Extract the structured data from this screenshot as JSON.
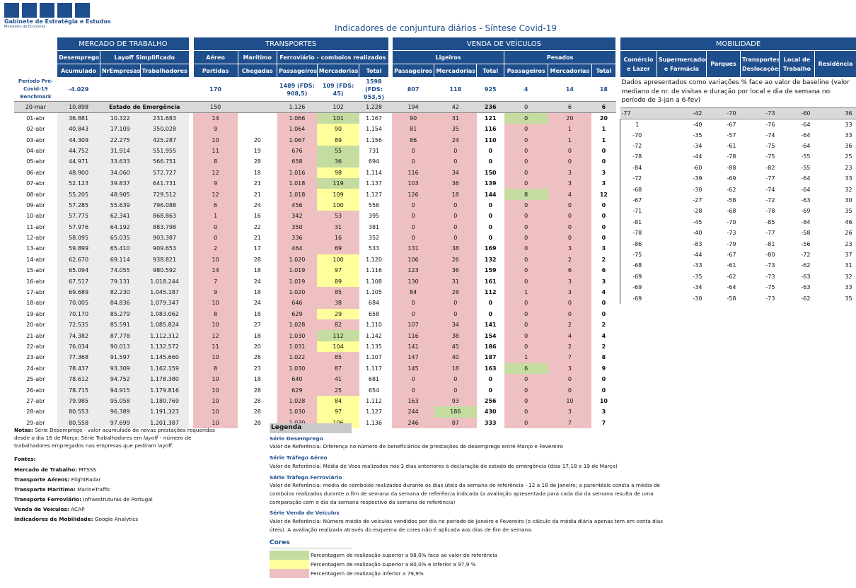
{
  "logo": {
    "name": "Gabinete de Estratégia e Estudos",
    "sub": "Ministério da Economia"
  },
  "title": "Indicadores de conjuntura diários - Síntese Covid-19",
  "sections": {
    "mercado": "MERCADO DE TRABALHO",
    "transportes": "TRANSPORTES",
    "venda": "VENDA DE VEÍCULOS",
    "mobilidade": "MOBILIDADE"
  },
  "headers": {
    "desemprego": "Desemprego",
    "layoff": "Layoff Simplificado",
    "aereo": "Aéreo",
    "maritimo": "Marítimo",
    "ferroviario": "Ferroviário - comboios realizados",
    "ligeiros": "Ligeiros",
    "pesados": "Pesados",
    "acumulado": "Acumulado",
    "nrempresas": "NrEmpresas",
    "trabalhadores": "Trabalhadores",
    "partidas": "Partidas",
    "chegadas": "Chegadas",
    "passageiros": "Passageiros",
    "mercadorias": "Mercadorias",
    "total": "Total"
  },
  "benchmark": {
    "label": "Período Pré-Covid-19 Benchmark",
    "desemprego": "-4.029",
    "aereo": "170",
    "ferro_pass": "1489 (FDS: 908,5)",
    "ferro_merc": "109 (FDS: 45)",
    "ferro_total": "1598 (FDS: 953,5)",
    "lig_pass": "807",
    "lig_merc": "118",
    "lig_total": "925",
    "pes_pass": "4",
    "pes_merc": "14",
    "pes_total": "18"
  },
  "reference_row": [
    "20-mar",
    "10.898",
    "Estado de Emergência",
    "",
    "150",
    "",
    "1.126",
    "102",
    "1.228",
    "194",
    "42",
    "236",
    "0",
    "6",
    "6"
  ],
  "rows": [
    [
      "01-abr",
      "36.881",
      "10.322",
      "231.683",
      "14",
      "",
      "1.066",
      "101",
      "1.167",
      "90",
      "31",
      "121",
      "0",
      "20",
      "20"
    ],
    [
      "02-abr",
      "40.843",
      "17.109",
      "350.028",
      "9",
      "",
      "1.064",
      "90",
      "1.154",
      "81",
      "35",
      "116",
      "0",
      "1",
      "1"
    ],
    [
      "03-abr",
      "44.309",
      "22.275",
      "425.287",
      "10",
      "20",
      "1.067",
      "89",
      "1.156",
      "86",
      "24",
      "110",
      "0",
      "1",
      "1"
    ],
    [
      "04-abr",
      "44.752",
      "31.914",
      "551.955",
      "11",
      "19",
      "676",
      "55",
      "731",
      "0",
      "0",
      "0",
      "0",
      "0",
      "0"
    ],
    [
      "05-abr",
      "44.971",
      "33.633",
      "566.751",
      "8",
      "28",
      "658",
      "36",
      "694",
      "0",
      "0",
      "0",
      "0",
      "0",
      "0"
    ],
    [
      "06-abr",
      "48.900",
      "34.060",
      "572.727",
      "12",
      "18",
      "1.016",
      "98",
      "1.114",
      "116",
      "34",
      "150",
      "0",
      "3",
      "3"
    ],
    [
      "07-abr",
      "52.123",
      "39.837",
      "641.731",
      "9",
      "21",
      "1.018",
      "119",
      "1.137",
      "103",
      "36",
      "139",
      "0",
      "3",
      "3"
    ],
    [
      "08-abr",
      "55.205",
      "48.905",
      "729.512",
      "12",
      "21",
      "1.018",
      "109",
      "1.127",
      "126",
      "18",
      "144",
      "8",
      "4",
      "12"
    ],
    [
      "09-abr",
      "57.285",
      "55.639",
      "796.088",
      "6",
      "24",
      "456",
      "100",
      "556",
      "0",
      "0",
      "0",
      "0",
      "0",
      "0"
    ],
    [
      "10-abr",
      "57.775",
      "62.341",
      "868.863",
      "1",
      "16",
      "342",
      "53",
      "395",
      "0",
      "0",
      "0",
      "0",
      "0",
      "0"
    ],
    [
      "11-abr",
      "57.976",
      "64.192",
      "883.798",
      "0",
      "22",
      "350",
      "31",
      "381",
      "0",
      "0",
      "0",
      "0",
      "0",
      "0"
    ],
    [
      "12-abr",
      "58.095",
      "65.035",
      "903.387",
      "0",
      "21",
      "336",
      "16",
      "352",
      "0",
      "0",
      "0",
      "0",
      "0",
      "0"
    ],
    [
      "13-abr",
      "59.899",
      "65.410",
      "909.653",
      "2",
      "17",
      "464",
      "69",
      "533",
      "131",
      "38",
      "169",
      "0",
      "3",
      "3"
    ],
    [
      "14-abr",
      "62.670",
      "69.114",
      "938.821",
      "10",
      "28",
      "1.020",
      "100",
      "1.120",
      "106",
      "26",
      "132",
      "0",
      "2",
      "2"
    ],
    [
      "15-abr",
      "65.094",
      "74.055",
      "980.592",
      "14",
      "18",
      "1.019",
      "97",
      "1.116",
      "123",
      "36",
      "159",
      "0",
      "6",
      "6"
    ],
    [
      "16-abr",
      "67.517",
      "79.131",
      "1.018.244",
      "7",
      "24",
      "1.019",
      "89",
      "1.108",
      "130",
      "31",
      "161",
      "0",
      "3",
      "3"
    ],
    [
      "17-abr",
      "69.689",
      "82.230",
      "1.045.187",
      "9",
      "18",
      "1.020",
      "85",
      "1.105",
      "84",
      "28",
      "112",
      "1",
      "3",
      "4"
    ],
    [
      "18-abr",
      "70.005",
      "84.836",
      "1.079.347",
      "10",
      "24",
      "646",
      "38",
      "684",
      "0",
      "0",
      "0",
      "0",
      "0",
      "0"
    ],
    [
      "19-abr",
      "70.170",
      "85.279",
      "1.083.062",
      "8",
      "18",
      "629",
      "29",
      "658",
      "0",
      "0",
      "0",
      "0",
      "0",
      "0"
    ],
    [
      "20-abr",
      "72.535",
      "85.591",
      "1.085.824",
      "10",
      "27",
      "1.028",
      "82",
      "1.110",
      "107",
      "34",
      "141",
      "0",
      "2",
      "2"
    ],
    [
      "21-abr",
      "74.382",
      "87.778",
      "1.112.312",
      "12",
      "18",
      "1.030",
      "112",
      "1.142",
      "116",
      "38",
      "154",
      "0",
      "4",
      "4"
    ],
    [
      "22-abr",
      "76.034",
      "90.013",
      "1.132.572",
      "11",
      "20",
      "1.031",
      "104",
      "1.135",
      "141",
      "45",
      "186",
      "0",
      "2",
      "2"
    ],
    [
      "23-abr",
      "77.368",
      "91.597",
      "1.145.660",
      "10",
      "28",
      "1.022",
      "85",
      "1.107",
      "147",
      "40",
      "187",
      "1",
      "7",
      "8"
    ],
    [
      "24-abr",
      "78.437",
      "93.309",
      "1.162.159",
      "8",
      "23",
      "1.030",
      "87",
      "1.117",
      "145",
      "18",
      "163",
      "6",
      "3",
      "9"
    ],
    [
      "25-abr",
      "78.612",
      "94.752",
      "1.178.380",
      "10",
      "18",
      "640",
      "41",
      "681",
      "0",
      "0",
      "0",
      "0",
      "0",
      "0"
    ],
    [
      "26-abr",
      "78.715",
      "94.915",
      "1.179.816",
      "10",
      "28",
      "629",
      "25",
      "654",
      "0",
      "0",
      "0",
      "0",
      "0",
      "0"
    ],
    [
      "27-abr",
      "79.985",
      "95.058",
      "1.180.769",
      "10",
      "28",
      "1.028",
      "84",
      "1.112",
      "163",
      "93",
      "256",
      "0",
      "10",
      "10"
    ],
    [
      "28-abr",
      "80.553",
      "96.389",
      "1.191.323",
      "10",
      "28",
      "1.030",
      "97",
      "1.127",
      "244",
      "186",
      "430",
      "0",
      "3",
      "3"
    ],
    [
      "29-abr",
      "80.558",
      "97.699",
      "1.201.387",
      "10",
      "28",
      "1.030",
      "106",
      "1.136",
      "246",
      "87",
      "333",
      "0",
      "7",
      "7"
    ]
  ],
  "row_colors": [
    [
      "p",
      "p",
      "g",
      "p",
      "p",
      "g",
      "p"
    ],
    [
      "p",
      "p",
      "y",
      "p",
      "p",
      "p",
      "p"
    ],
    [
      "p",
      "p",
      "y",
      "p",
      "p",
      "p",
      "p"
    ],
    [
      "p",
      "p",
      "g",
      "p",
      "p",
      "p",
      "p"
    ],
    [
      "p",
      "p",
      "g",
      "p",
      "p",
      "p",
      "p"
    ],
    [
      "p",
      "p",
      "y",
      "p",
      "p",
      "p",
      "p"
    ],
    [
      "p",
      "p",
      "g",
      "p",
      "p",
      "p",
      "p"
    ],
    [
      "p",
      "p",
      "y",
      "p",
      "p",
      "g",
      "p"
    ],
    [
      "p",
      "p",
      "y",
      "p",
      "p",
      "p",
      "p"
    ],
    [
      "p",
      "p",
      "p",
      "p",
      "p",
      "p",
      "p"
    ],
    [
      "p",
      "p",
      "p",
      "p",
      "p",
      "p",
      "p"
    ],
    [
      "p",
      "p",
      "p",
      "p",
      "p",
      "p",
      "p"
    ],
    [
      "p",
      "p",
      "p",
      "p",
      "p",
      "p",
      "p"
    ],
    [
      "p",
      "p",
      "y",
      "p",
      "p",
      "p",
      "p"
    ],
    [
      "p",
      "p",
      "y",
      "p",
      "p",
      "p",
      "p"
    ],
    [
      "p",
      "p",
      "y",
      "p",
      "p",
      "p",
      "p"
    ],
    [
      "p",
      "p",
      "p",
      "p",
      "p",
      "p",
      "p"
    ],
    [
      "p",
      "p",
      "p",
      "p",
      "p",
      "p",
      "p"
    ],
    [
      "p",
      "p",
      "y",
      "p",
      "p",
      "p",
      "p"
    ],
    [
      "p",
      "p",
      "p",
      "p",
      "p",
      "p",
      "p"
    ],
    [
      "p",
      "p",
      "g",
      "p",
      "p",
      "p",
      "p"
    ],
    [
      "p",
      "p",
      "y",
      "p",
      "p",
      "p",
      "p"
    ],
    [
      "p",
      "p",
      "p",
      "p",
      "p",
      "p",
      "p"
    ],
    [
      "p",
      "p",
      "p",
      "p",
      "p",
      "g",
      "p"
    ],
    [
      "p",
      "p",
      "p",
      "p",
      "p",
      "p",
      "p"
    ],
    [
      "p",
      "p",
      "p",
      "p",
      "p",
      "p",
      "p"
    ],
    [
      "p",
      "p",
      "y",
      "p",
      "p",
      "p",
      "p"
    ],
    [
      "p",
      "p",
      "y",
      "p",
      "g",
      "p",
      "p"
    ],
    [
      "p",
      "p",
      "y",
      "p",
      "p",
      "p",
      "p"
    ]
  ],
  "mobilidade": {
    "headers": [
      "Comércio e Lazer",
      "Supermercados e Farmácia",
      "Parques",
      "Transportes/ Deslocações",
      "Local de Trabalho",
      "Residência"
    ],
    "note": "Dados apresentados como variações % face ao valor de baseline (valor mediano de nr. de visitas e duração por local e dia de semana no período de 3-jan a 6-fev)",
    "reference": [
      "-77",
      "-42",
      "-70",
      "-73",
      "-60",
      "36"
    ],
    "rows": [
      [
        "1",
        "-40",
        "-67",
        "-76",
        "-64",
        "33"
      ],
      [
        "-70",
        "-35",
        "-57",
        "-74",
        "-64",
        "33"
      ],
      [
        "-72",
        "-34",
        "-61",
        "-75",
        "-64",
        "36"
      ],
      [
        "-78",
        "-44",
        "-78",
        "-75",
        "-55",
        "25"
      ],
      [
        "-84",
        "-60",
        "-88",
        "-82",
        "-55",
        "23"
      ],
      [
        "-72",
        "-39",
        "-69",
        "-77",
        "-64",
        "33"
      ],
      [
        "-68",
        "-30",
        "-62",
        "-74",
        "-64",
        "32"
      ],
      [
        "-67",
        "-27",
        "-58",
        "-72",
        "-63",
        "30"
      ],
      [
        "-71",
        "-28",
        "-68",
        "-78",
        "-69",
        "35"
      ],
      [
        "-81",
        "-45",
        "-70",
        "-85",
        "-84",
        "46"
      ],
      [
        "-78",
        "-40",
        "-73",
        "-77",
        "-58",
        "26"
      ],
      [
        "-86",
        "-83",
        "-79",
        "-81",
        "-56",
        "23"
      ],
      [
        "-75",
        "-44",
        "-67",
        "-80",
        "-72",
        "37"
      ],
      [
        "-68",
        "-33",
        "-61",
        "-73",
        "-62",
        "31"
      ],
      [
        "-69",
        "-35",
        "-62",
        "-73",
        "-63",
        "32"
      ],
      [
        "-69",
        "-34",
        "-64",
        "-75",
        "-63",
        "33"
      ],
      [
        "-69",
        "-30",
        "-58",
        "-73",
        "-62",
        "35"
      ]
    ]
  },
  "notes": {
    "notas_label": "Notas:",
    "notas_text": "Série Desemprego - valor acumulado de novas prestações requeridas desde o dia 16 de Março; Série Trabalhadores em",
    "notas_italic": "layoff",
    "notas_text2": "- número de trabalhadores empregados nas empresas que pediram layoff.",
    "fontes_label": "Fontes:",
    "fontes": [
      [
        "Mercado de Trabalho:",
        "MTSSS"
      ],
      [
        "Transporte Aéreos:",
        "FlightRadar"
      ],
      [
        "Transporte Marítimo:",
        "MarineTraffic"
      ],
      [
        "Transporte Ferroviário:",
        "Infraestruturas de Portugal"
      ],
      [
        "Venda de Veículos:",
        "ACAP"
      ],
      [
        "Indicadores de Mobilidade:",
        "Google Analytics"
      ]
    ]
  },
  "legend": {
    "title": "Legenda",
    "items": [
      {
        "h": "Série Desemprego",
        "t": "Valor de Referência: Diferença no número de beneficiários de prestações de desemprego entre Março e Fevereiro"
      },
      {
        "h": "Série Tráfego Aéreo",
        "t": "Valor de Referência: Média de Voos realizados nos 3 dias anteriores à declaração de estado de emergência (dias 17,18 e 19 de Março)"
      },
      {
        "h": "Série Tráfego Ferroviário",
        "t": "Valor de Referência: média de comboios realizados durante os dias úteis da semana de referência - 12 a 18 de Janeiro; a parentésis consta a média de comboios realizados durante o fim de semana da semana de referência indicada (a avaliação apresentada para cada dia da semana resulta de uma comparação com o dia da semana respectivo da semana de referência)"
      },
      {
        "h": "Série Venda de Veículos",
        "t": "Valor de Referência: Número médio de veículos vendidos por dia no período de Janeiro e Fevereiro (o cálculo da média diária apenas tem em conta dias úteis). A avaliação realizada através do esquema de cores não é aplicada aos dias de fim de semana."
      }
    ],
    "cores_title": "Cores",
    "cores": [
      {
        "color": "#c5dca0",
        "t": "Percentagem de realização superior a 98,0% face ao valor de referência"
      },
      {
        "color": "#ffff9c",
        "t": "Percentagem de realização superior a 80,0% e inferior a 97,9 %"
      },
      {
        "color": "#eec0c2",
        "t": "Percentagem de realização inferior a 79,9%"
      }
    ]
  }
}
